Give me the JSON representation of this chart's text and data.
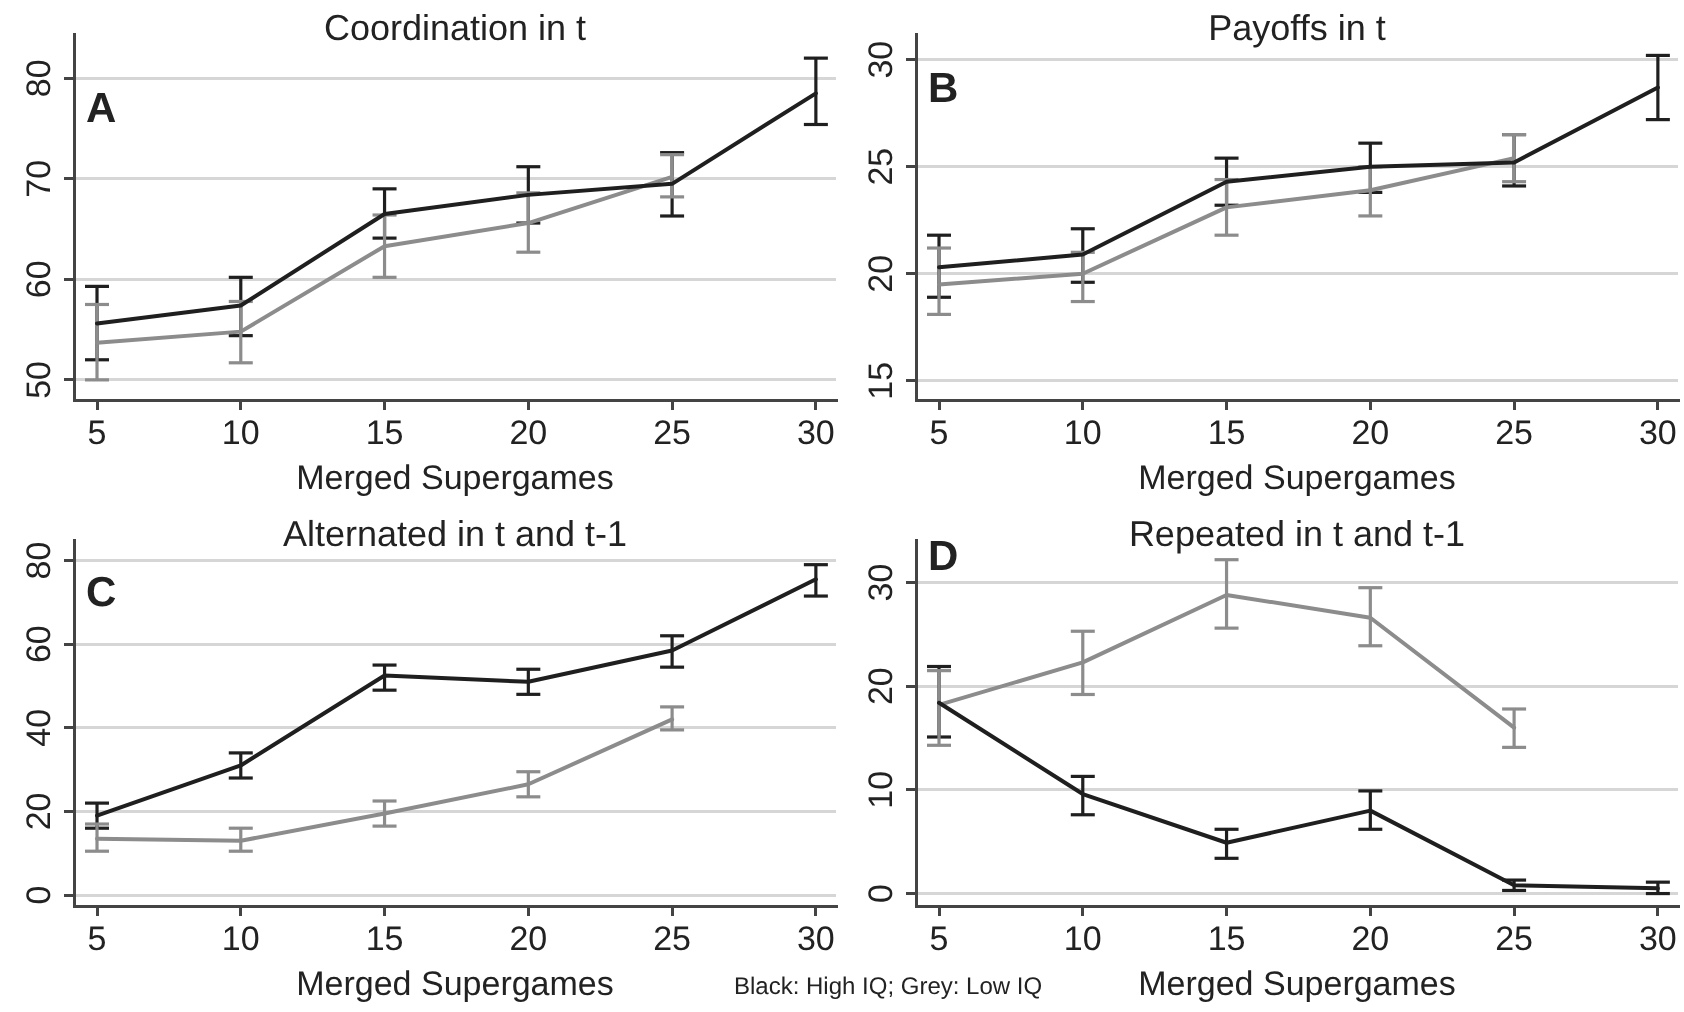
{
  "chart_data": [
    {
      "type": "line",
      "title": "Coordination in t",
      "xlabel": "Merged Supergames",
      "annotations": [
        "A"
      ],
      "x": [
        5,
        10,
        15,
        20,
        25,
        30
      ],
      "xlim": [
        4.2,
        30.7
      ],
      "xticks": [
        5,
        10,
        15,
        20,
        25,
        30
      ],
      "ylim": [
        48,
        84.4
      ],
      "yticks": [
        50,
        60,
        70,
        80
      ],
      "grid": "y",
      "marker": "none",
      "series": [
        {
          "color": "#1f1f1f",
          "values": [
            55.6,
            57.4,
            66.5,
            68.4,
            69.5,
            78.5
          ],
          "errors": [
            [
              52.0,
              59.3
            ],
            [
              54.4,
              60.2
            ],
            [
              64.1,
              69.0
            ],
            [
              65.6,
              71.2
            ],
            [
              66.3,
              72.6
            ],
            [
              75.4,
              82.0
            ]
          ]
        },
        {
          "color": "#8c8c8c",
          "values": [
            53.7,
            54.8,
            63.3,
            65.6,
            70.2,
            null
          ],
          "errors": [
            [
              50.0,
              57.5
            ],
            [
              51.7,
              57.8
            ],
            [
              60.2,
              66.4
            ],
            [
              62.7,
              68.6
            ],
            [
              68.2,
              72.4
            ],
            null
          ]
        }
      ]
    },
    {
      "type": "line",
      "title": "Payoffs in t",
      "xlabel": "Merged Supergames",
      "annotations": [
        "B"
      ],
      "x": [
        5,
        10,
        15,
        20,
        25,
        30
      ],
      "xlim": [
        4.2,
        30.7
      ],
      "xticks": [
        5,
        10,
        15,
        20,
        25,
        30
      ],
      "ylim": [
        14.1,
        31.2
      ],
      "yticks": [
        15,
        20,
        25,
        30
      ],
      "grid": "y",
      "marker": "none",
      "series": [
        {
          "color": "#1f1f1f",
          "values": [
            20.3,
            20.9,
            24.3,
            25.0,
            25.2,
            28.7
          ],
          "errors": [
            [
              18.9,
              21.8
            ],
            [
              19.6,
              22.1
            ],
            [
              23.2,
              25.4
            ],
            [
              23.8,
              26.1
            ],
            [
              24.1,
              26.5
            ],
            [
              27.2,
              30.2
            ]
          ]
        },
        {
          "color": "#8c8c8c",
          "values": [
            19.5,
            20.0,
            23.1,
            23.9,
            25.4,
            null
          ],
          "errors": [
            [
              18.1,
              21.2
            ],
            [
              18.7,
              21.0
            ],
            [
              21.8,
              24.4
            ],
            [
              22.7,
              25.0
            ],
            [
              24.3,
              26.5
            ],
            null
          ]
        }
      ]
    },
    {
      "type": "line",
      "title": "Alternated in t and t-1",
      "xlabel": "Merged Supergames",
      "annotations": [
        "C",
        "Black: High IQ; Grey: Low IQ"
      ],
      "x": [
        5,
        10,
        15,
        20,
        25,
        30
      ],
      "xlim": [
        4.2,
        30.7
      ],
      "xticks": [
        5,
        10,
        15,
        20,
        25,
        30
      ],
      "ylim": [
        -2.6,
        84.9
      ],
      "yticks": [
        0,
        20,
        40,
        60,
        80
      ],
      "grid": "y",
      "marker": "none",
      "series": [
        {
          "color": "#1f1f1f",
          "values": [
            19,
            31,
            52.5,
            51,
            58.5,
            75.5
          ],
          "errors": [
            [
              16,
              22
            ],
            [
              28,
              34
            ],
            [
              49,
              55
            ],
            [
              48,
              54
            ],
            [
              54.5,
              62
            ],
            [
              71.5,
              79
            ]
          ]
        },
        {
          "color": "#8c8c8c",
          "values": [
            13.5,
            13,
            19.5,
            26.5,
            42,
            null
          ],
          "errors": [
            [
              10.5,
              17
            ],
            [
              10.5,
              16
            ],
            [
              16.5,
              22.5
            ],
            [
              23.5,
              29.5
            ],
            [
              39.5,
              45
            ],
            null
          ]
        }
      ]
    },
    {
      "type": "line",
      "title": "Repeated in t and t-1",
      "xlabel": "Merged Supergames",
      "annotations": [
        "D"
      ],
      "x": [
        5,
        10,
        15,
        20,
        25,
        30
      ],
      "xlim": [
        4.2,
        30.7
      ],
      "xticks": [
        5,
        10,
        15,
        20,
        25,
        30
      ],
      "ylim": [
        -1.2,
        34.1
      ],
      "yticks": [
        0,
        10,
        20,
        30
      ],
      "grid": "y",
      "marker": "none",
      "series": [
        {
          "color": "#1f1f1f",
          "values": [
            18.4,
            9.6,
            4.9,
            8.0,
            0.8,
            0.5
          ],
          "errors": [
            [
              15.1,
              21.9
            ],
            [
              7.6,
              11.3
            ],
            [
              3.4,
              6.2
            ],
            [
              6.2,
              9.9
            ],
            [
              0.3,
              1.3
            ],
            [
              0.0,
              1.1
            ]
          ]
        },
        {
          "color": "#8c8c8c",
          "values": [
            18.2,
            22.3,
            28.8,
            26.6,
            16.0,
            null
          ],
          "errors": [
            [
              14.3,
              21.5
            ],
            [
              19.2,
              25.3
            ],
            [
              25.6,
              32.2
            ],
            [
              23.9,
              29.5
            ],
            [
              14.1,
              17.8
            ],
            null
          ]
        }
      ]
    }
  ]
}
